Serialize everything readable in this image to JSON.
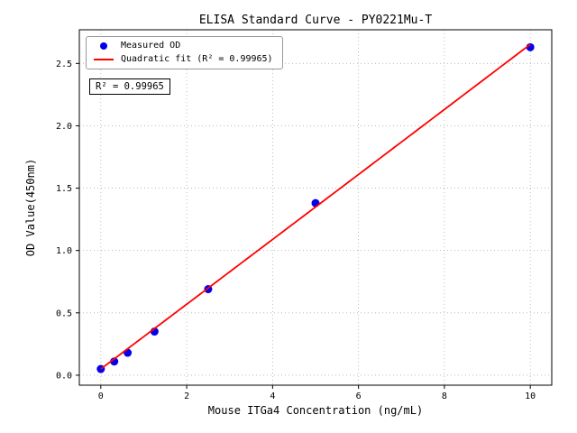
{
  "chart_data": {
    "type": "scatter",
    "title": "ELISA Standard Curve - PY0221Mu-T",
    "xlabel": "Mouse ITGa4 Concentration (ng/mL)",
    "ylabel": "OD Value(450nm)",
    "xlim": [
      -0.5,
      10.5
    ],
    "ylim": [
      -0.08,
      2.77
    ],
    "xticks": [
      0,
      2,
      4,
      6,
      8,
      10
    ],
    "yticks": [
      0.0,
      0.5,
      1.0,
      1.5,
      2.0,
      2.5
    ],
    "grid": true,
    "grid_style": "dotted",
    "grid_color": "#b0b0b0",
    "legend_position": "upper-left",
    "annotation": "R² = 0.99965",
    "series": [
      {
        "name": "Measured OD",
        "type": "scatter",
        "marker": "circle",
        "color": "#0000ee",
        "x": [
          0,
          0.3125,
          0.625,
          1.25,
          2.5,
          5,
          10
        ],
        "y": [
          0.05,
          0.11,
          0.18,
          0.35,
          0.69,
          1.38,
          2.63
        ]
      },
      {
        "name": "Quadratic fit (R² = 0.99965)",
        "type": "line",
        "color": "#ff0000",
        "fit": "quadratic",
        "fit_coeffs": [
          0.05,
          0.2593,
          0.0001
        ],
        "x_range": [
          0,
          10
        ]
      }
    ]
  }
}
